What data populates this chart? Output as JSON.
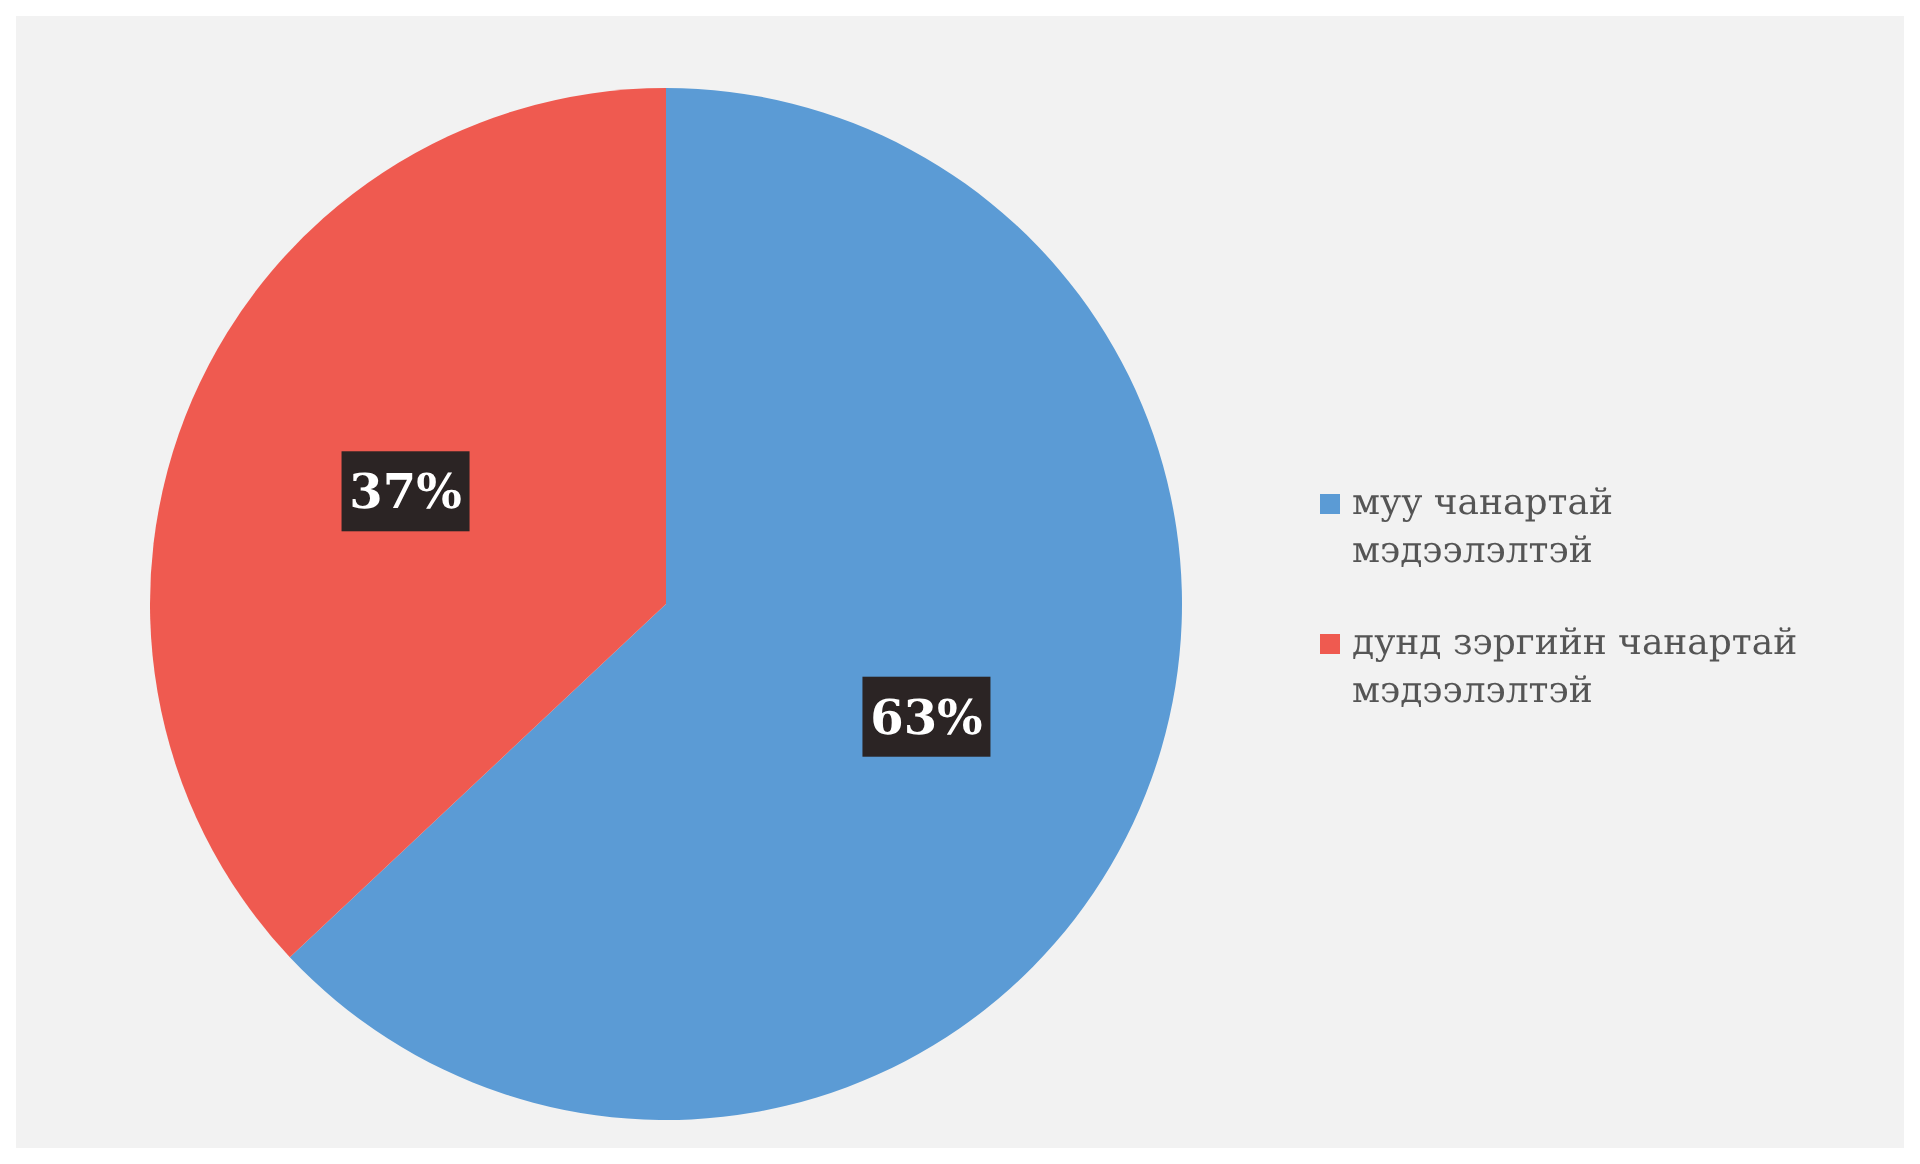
{
  "chart_data": {
    "type": "pie",
    "categories": [
      "муу чанартай мэдээлэлтэй",
      "дунд зэргийн чанартай мэдээлэлтэй"
    ],
    "values": [
      63,
      37
    ],
    "colors": [
      "#5b9bd5",
      "#ef5a50"
    ],
    "value_labels": [
      "63%",
      "37%"
    ],
    "legend": "right"
  }
}
